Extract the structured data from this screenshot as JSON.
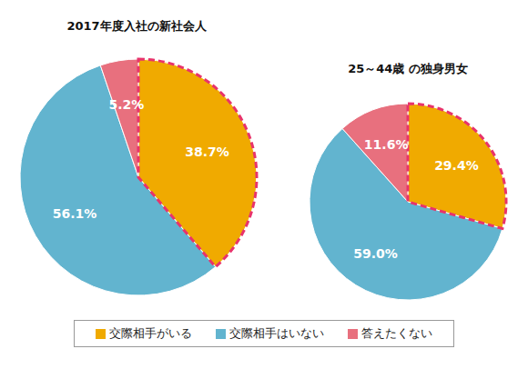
{
  "chart_data": [
    {
      "type": "pie",
      "title": "2017年度入社の新社会人",
      "categories": [
        "交際相手がいる",
        "交際相手はいない",
        "答えたくない"
      ],
      "values": [
        38.7,
        56.1,
        5.2
      ],
      "value_labels": [
        "38.7%",
        "56.1%",
        "5.2%"
      ],
      "colors": [
        "#f0aa00",
        "#62b4cf",
        "#e8707e"
      ],
      "data_labels": true,
      "legend": "bottom"
    },
    {
      "type": "pie",
      "title": "25～44歳 の独身男女",
      "categories": [
        "交際相手がいる",
        "交際相手はいない",
        "答えたくない"
      ],
      "values": [
        29.4,
        59.0,
        11.6
      ],
      "value_labels": [
        "29.4%",
        "59.0%",
        "11.6%"
      ],
      "colors": [
        "#f0aa00",
        "#62b4cf",
        "#e8707e"
      ],
      "data_labels": true,
      "legend": "bottom"
    }
  ]
}
